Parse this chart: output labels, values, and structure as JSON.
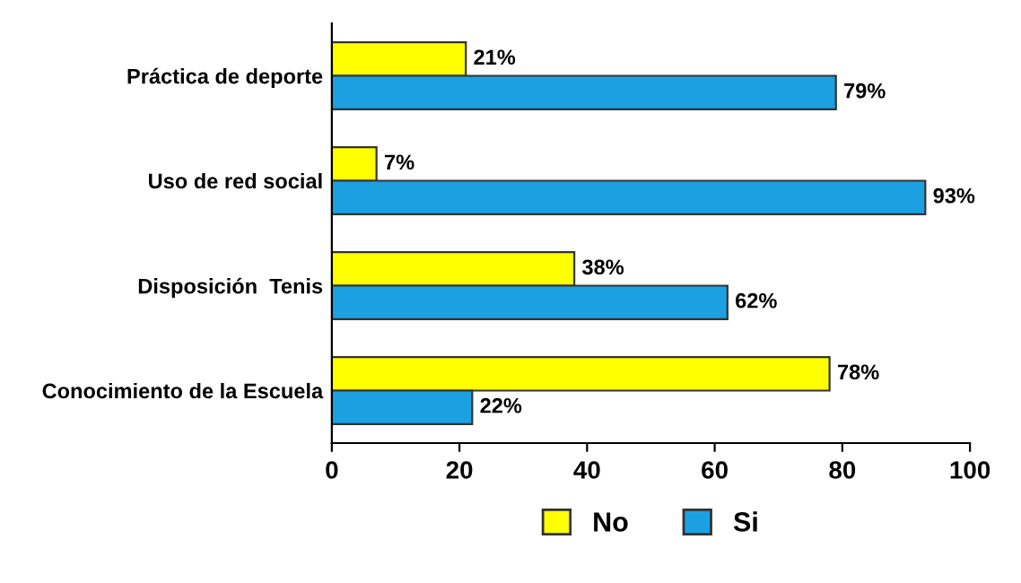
{
  "chart_data": {
    "type": "bar",
    "orientation": "horizontal",
    "categories": [
      "Práctica de deporte",
      "Uso de red social",
      "Disposición  Tenis",
      "Conocimiento de la Escuela"
    ],
    "series": [
      {
        "name": "No",
        "color": "#ffff00",
        "values": [
          21,
          7,
          38,
          78
        ],
        "value_labels": [
          "21%",
          "7%",
          "38%",
          "78%"
        ]
      },
      {
        "name": "Si",
        "color": "#1ba1e2",
        "values": [
          79,
          93,
          62,
          22
        ],
        "value_labels": [
          "79%",
          "93%",
          "62%",
          "22%"
        ]
      }
    ],
    "xlim": [
      0,
      100
    ],
    "xticks": [
      0,
      20,
      40,
      60,
      80,
      100
    ],
    "grid": false,
    "legend": "bottom"
  }
}
